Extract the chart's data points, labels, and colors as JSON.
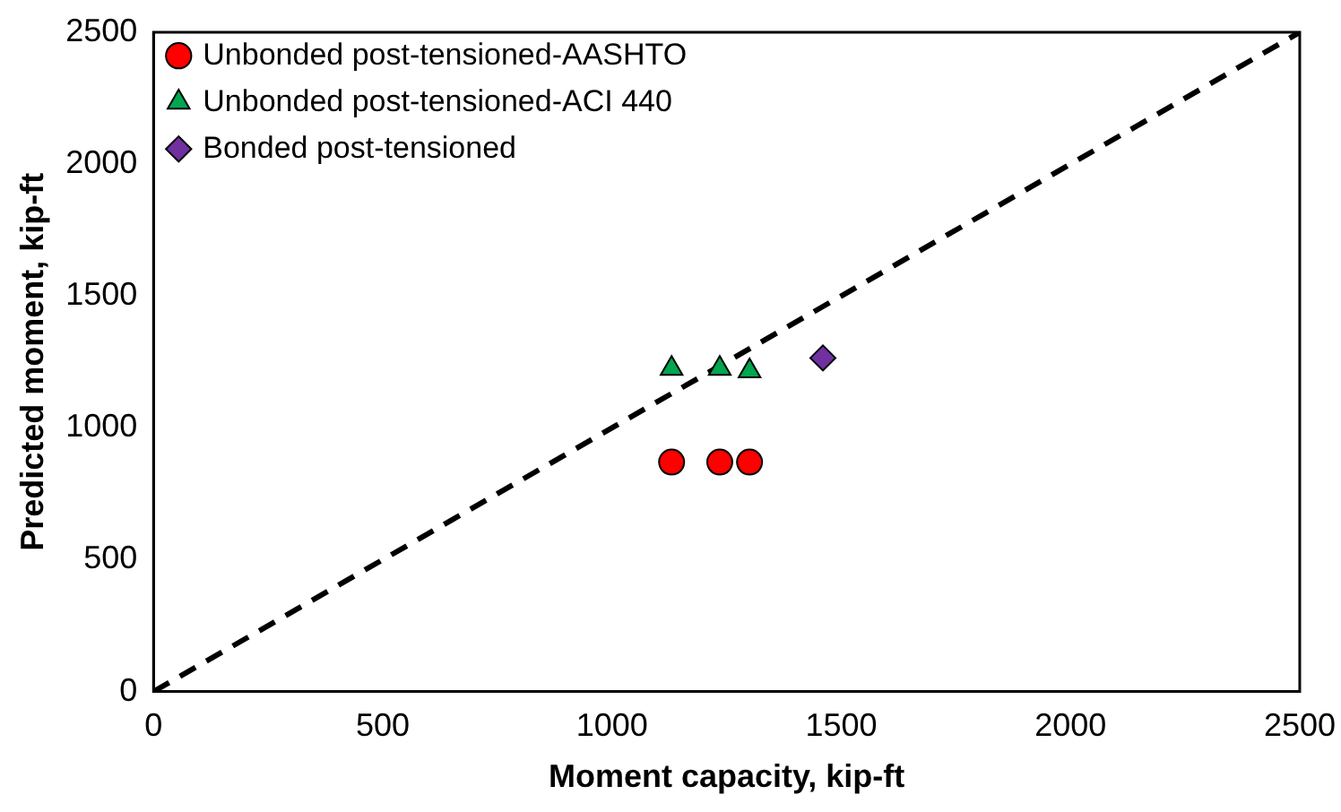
{
  "chart_data": {
    "type": "scatter",
    "xlabel": "Moment capacity, kip-ft",
    "ylabel": "Predicted moment, kip-ft",
    "xlim": [
      0,
      2500
    ],
    "ylim": [
      0,
      2500
    ],
    "xticks": [
      0,
      500,
      1000,
      1500,
      2000,
      2500
    ],
    "yticks": [
      0,
      500,
      1000,
      1500,
      2000,
      2500
    ],
    "grid": false,
    "legend": "top left",
    "series": [
      {
        "name": "Unbonded post-tensioned-AASHTO",
        "color": "#ff0000",
        "marker": "circle",
        "x": [
          1130,
          1235,
          1300
        ],
        "values": [
          870,
          870,
          870
        ]
      },
      {
        "name": "Unbonded post-tensioned-ACI 440",
        "color": "#00a650",
        "marker": "triangle",
        "x": [
          1130,
          1235,
          1300
        ],
        "values": [
          1225,
          1225,
          1215
        ]
      },
      {
        "name": "Bonded post-tensioned",
        "color": "#7030a0",
        "marker": "diamond",
        "x": [
          1460
        ],
        "values": [
          1265
        ]
      },
      {
        "type": "line",
        "color": "#000000",
        "line_style": "dashed",
        "marker": "none",
        "x": [
          0,
          2500
        ],
        "values": [
          0,
          2500
        ]
      }
    ]
  }
}
